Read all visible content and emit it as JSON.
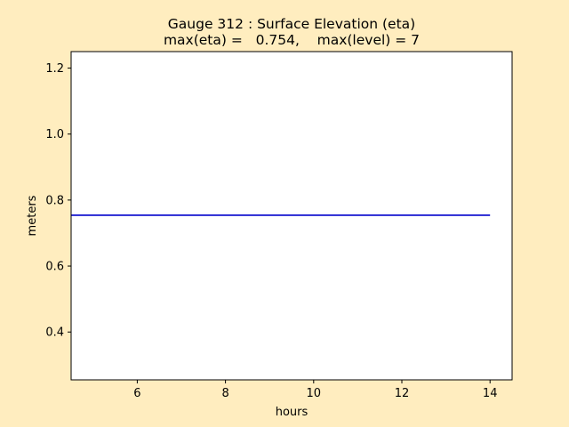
{
  "figure": {
    "background": "#FFEDBF"
  },
  "chart_data": {
    "type": "line",
    "title": "Gauge 312 : Surface Elevation (eta)",
    "subtitle": "max(eta) =   0.754,    max(level) = 7",
    "xlabel": "hours",
    "ylabel": "meters",
    "xlim": [
      4.5,
      14.5
    ],
    "ylim": [
      0.255,
      1.25
    ],
    "xticks": [
      6,
      8,
      10,
      12,
      14
    ],
    "xtick_labels": [
      "6",
      "8",
      "10",
      "12",
      "14"
    ],
    "yticks": [
      0.4,
      0.6,
      0.8,
      1.0,
      1.2
    ],
    "ytick_labels": [
      "0.4",
      "0.6",
      "0.8",
      "1.0",
      "1.2"
    ],
    "grid": false,
    "series": [
      {
        "color": "#0000CC",
        "x": [
          4.5,
          6,
          8,
          10,
          12,
          14
        ],
        "y": [
          0.754,
          0.754,
          0.754,
          0.754,
          0.754,
          0.754
        ]
      }
    ]
  }
}
